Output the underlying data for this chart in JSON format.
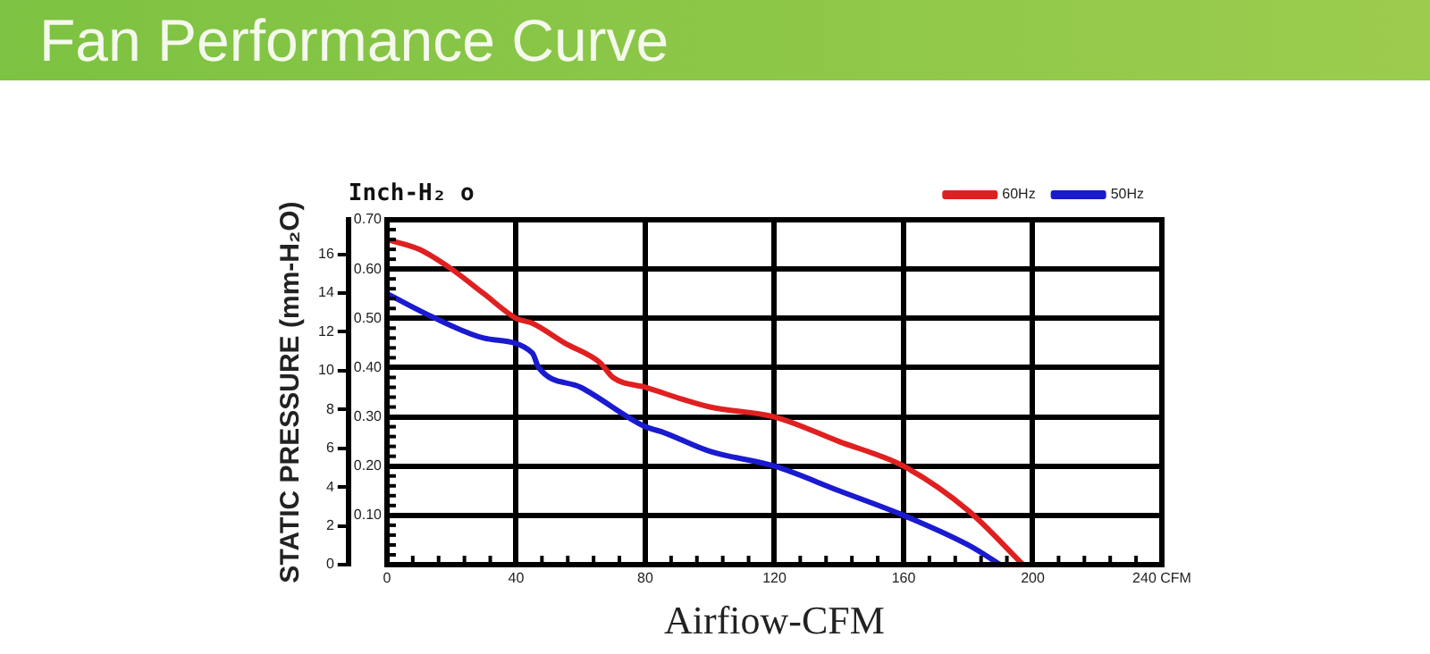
{
  "chart_data": {
    "type": "line",
    "title": "Fan Performance Curve",
    "xlabel": "Airfiow-CFM",
    "ylabel": "Inch-H₂ o",
    "y2label": "STATIC PRESSURE (mm-H₂O)",
    "xlim": [
      0,
      240
    ],
    "xticks": [
      0,
      40,
      80,
      120,
      160,
      200,
      {
        "value": 240,
        "label": "240 CFM"
      }
    ],
    "ylim": [
      0,
      0.7
    ],
    "yticks": [
      {
        "value": 0,
        "label": null
      },
      {
        "value": 0.1,
        "label": "0.10"
      },
      {
        "value": 0.2,
        "label": "0.20"
      },
      {
        "value": 0.3,
        "label": "0.30"
      },
      {
        "value": 0.4,
        "label": "0.40"
      },
      {
        "value": 0.5,
        "label": "0.50"
      },
      {
        "value": 0.6,
        "label": "0.60"
      },
      {
        "value": 0.7,
        "label": "0.70"
      }
    ],
    "y2lim": [
      0,
      17.78
    ],
    "y2ticks": [
      0,
      2,
      4,
      6,
      8,
      10,
      12,
      14,
      16
    ],
    "grid": true,
    "legend": "top right",
    "marker": "none",
    "line_style": "solid",
    "series": [
      {
        "name": "60Hz",
        "color": "#e02020",
        "x": [
          0,
          10,
          20,
          30,
          40,
          45,
          55,
          66,
          70,
          80,
          100,
          120,
          140,
          160,
          180,
          197
        ],
        "values": [
          0.66,
          0.64,
          0.6,
          0.55,
          0.5,
          0.49,
          0.45,
          0.41,
          0.38,
          0.36,
          0.32,
          0.3,
          0.25,
          0.2,
          0.11,
          0
        ]
      },
      {
        "name": "50Hz",
        "color": "#1a1ad0",
        "x": [
          0,
          15,
          30,
          45,
          47,
          60,
          80,
          85,
          100,
          120,
          140,
          160,
          180,
          190
        ],
        "values": [
          0.55,
          0.5,
          0.46,
          0.43,
          0.4,
          0.36,
          0.28,
          0.27,
          0.23,
          0.2,
          0.15,
          0.1,
          0.04,
          0
        ]
      }
    ]
  }
}
